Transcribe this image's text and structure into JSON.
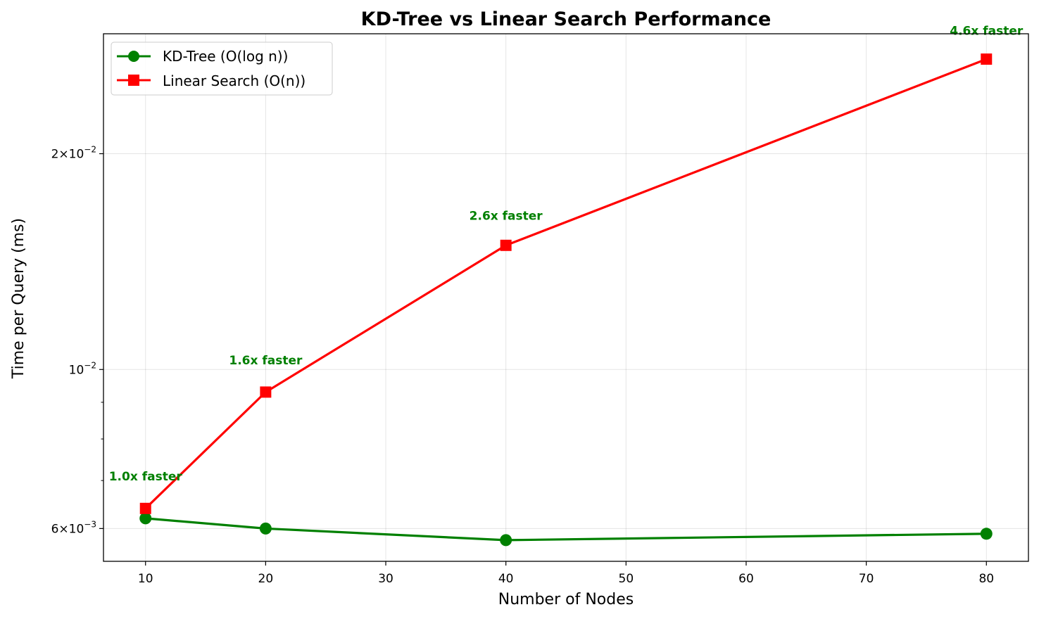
{
  "chart_data": {
    "type": "line",
    "title": "KD-Tree vs Linear Search Performance",
    "xlabel": "Number of Nodes",
    "ylabel": "Time per Query (ms)",
    "x": [
      10,
      20,
      40,
      80
    ],
    "xlim": [
      6.5,
      83.5
    ],
    "ylim": [
      0.0054,
      0.0294
    ],
    "yscale": "log",
    "grid": true,
    "legend_position": "top-left",
    "x_ticks": [
      10,
      20,
      30,
      40,
      50,
      60,
      70,
      80
    ],
    "x_tick_labels": [
      "10",
      "20",
      "30",
      "40",
      "50",
      "60",
      "70",
      "80"
    ],
    "y_major_ticks": [
      {
        "value": 0.006,
        "mantissa": "6",
        "exponent": "-3"
      },
      {
        "value": 0.01,
        "mantissa": "",
        "exponent": "-2"
      },
      {
        "value": 0.02,
        "mantissa": "2",
        "exponent": "-2"
      }
    ],
    "y_minor_ticks": [
      0.007,
      0.008,
      0.009
    ],
    "series": [
      {
        "name": "KD-Tree (O(log n))",
        "color": "#008000",
        "marker": "circle",
        "values": [
          0.0062,
          0.006,
          0.00578,
          0.0059
        ]
      },
      {
        "name": "Linear Search (O(n))",
        "color": "#ff0000",
        "marker": "square",
        "values": [
          0.0064,
          0.0093,
          0.0149,
          0.0271
        ]
      }
    ],
    "annotations": [
      {
        "x": 10,
        "y": 0.0071,
        "text": "1.0x faster",
        "color": "#008000"
      },
      {
        "x": 20,
        "y": 0.0103,
        "text": "1.6x faster",
        "color": "#008000"
      },
      {
        "x": 40,
        "y": 0.0164,
        "text": "2.6x faster",
        "color": "#008000"
      },
      {
        "x": 80,
        "y": 0.0297,
        "text": "4.6x faster",
        "color": "#008000"
      }
    ]
  }
}
